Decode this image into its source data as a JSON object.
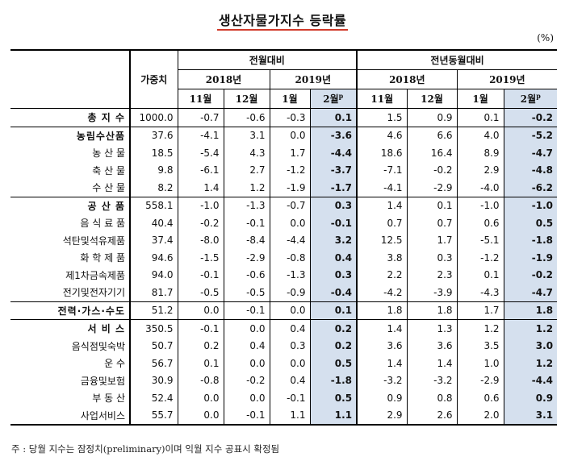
{
  "title": "생산자물가지수 등락률",
  "unit": "(%)",
  "header": {
    "weight": "가중치",
    "mom": "전월대비",
    "yoy": "전년동월대비",
    "y2018": "2018년",
    "y2019": "2019년",
    "m11": "11월",
    "m12": "12월",
    "m1": "1월",
    "m2": "2월",
    "p": "p"
  },
  "rows": [
    {
      "label": "총 지 수",
      "level": "top",
      "weight": "1000.0",
      "v": [
        "-0.7",
        "-0.6",
        "-0.3",
        "0.1",
        "1.5",
        "0.9",
        "0.1",
        "-0.2"
      ]
    },
    {
      "label": "농림수산품",
      "level": "top",
      "weight": "37.6",
      "v": [
        "-4.1",
        "3.1",
        "0.0",
        "-3.6",
        "4.6",
        "6.6",
        "4.0",
        "-5.2"
      ]
    },
    {
      "label": "농 산 물",
      "level": "sub",
      "weight": "18.5",
      "v": [
        "-5.4",
        "4.3",
        "1.7",
        "-4.4",
        "18.6",
        "16.4",
        "8.9",
        "-4.7"
      ]
    },
    {
      "label": "축 산 물",
      "level": "sub",
      "weight": "9.8",
      "v": [
        "-6.1",
        "2.7",
        "-1.2",
        "-3.7",
        "-7.1",
        "-0.2",
        "2.9",
        "-4.8"
      ]
    },
    {
      "label": "수 산 물",
      "level": "sub",
      "weight": "8.2",
      "v": [
        "1.4",
        "1.2",
        "-1.9",
        "-1.7",
        "-4.1",
        "-2.9",
        "-4.0",
        "-6.2"
      ]
    },
    {
      "label": "공 산 품",
      "level": "top",
      "weight": "558.1",
      "v": [
        "-1.0",
        "-1.3",
        "-0.7",
        "0.3",
        "1.4",
        "0.1",
        "-1.0",
        "-1.0"
      ]
    },
    {
      "label": "음 식 료 품",
      "level": "sub",
      "weight": "40.4",
      "v": [
        "-0.2",
        "-0.1",
        "0.0",
        "-0.1",
        "0.7",
        "0.7",
        "0.6",
        "0.5"
      ]
    },
    {
      "label": "석탄및석유제품",
      "level": "sub",
      "weight": "37.4",
      "v": [
        "-8.0",
        "-8.4",
        "-4.4",
        "3.2",
        "12.5",
        "1.7",
        "-5.1",
        "-1.8"
      ]
    },
    {
      "label": "화 학 제 품",
      "level": "sub",
      "weight": "94.6",
      "v": [
        "-1.5",
        "-2.9",
        "-0.8",
        "0.4",
        "3.8",
        "0.3",
        "-1.2",
        "-1.9"
      ]
    },
    {
      "label": "제1차금속제품",
      "level": "sub",
      "weight": "94.0",
      "v": [
        "-0.1",
        "-0.6",
        "-1.3",
        "0.3",
        "2.2",
        "2.3",
        "0.1",
        "-0.2"
      ]
    },
    {
      "label": "전기및전자기기",
      "level": "sub",
      "weight": "81.7",
      "v": [
        "-0.5",
        "-0.5",
        "-0.9",
        "-0.4",
        "-4.2",
        "-3.9",
        "-4.3",
        "-4.7"
      ]
    },
    {
      "label": "전력·가스·수도",
      "level": "top",
      "weight": "51.2",
      "v": [
        "0.0",
        "-0.1",
        "0.0",
        "0.1",
        "1.8",
        "1.8",
        "1.7",
        "1.8"
      ]
    },
    {
      "label": "서 비 스",
      "level": "top",
      "weight": "350.5",
      "v": [
        "-0.1",
        "0.0",
        "0.4",
        "0.2",
        "1.4",
        "1.3",
        "1.2",
        "1.2"
      ]
    },
    {
      "label": "음식점및숙박",
      "level": "sub",
      "weight": "50.7",
      "v": [
        "0.2",
        "0.4",
        "0.3",
        "0.2",
        "3.6",
        "3.6",
        "3.5",
        "3.0"
      ]
    },
    {
      "label": "운 수",
      "level": "sub",
      "weight": "56.7",
      "v": [
        "0.1",
        "0.0",
        "0.0",
        "0.5",
        "1.4",
        "1.4",
        "1.0",
        "1.2"
      ]
    },
    {
      "label": "금융및보험",
      "level": "sub",
      "weight": "30.9",
      "v": [
        "-0.8",
        "-0.2",
        "0.4",
        "-1.8",
        "-3.2",
        "-3.2",
        "-2.9",
        "-4.4"
      ]
    },
    {
      "label": "부 동 산",
      "level": "sub",
      "weight": "52.4",
      "v": [
        "0.0",
        "0.0",
        "-0.1",
        "0.5",
        "0.9",
        "0.8",
        "0.6",
        "0.9"
      ]
    },
    {
      "label": "사업서비스",
      "level": "sub",
      "weight": "55.7",
      "v": [
        "0.0",
        "-0.1",
        "1.1",
        "1.1",
        "2.9",
        "2.6",
        "2.0",
        "3.1"
      ]
    }
  ],
  "note": "주 : 당월 지수는 잠정치(preliminary)이며 익월 지수 공표시 확정됨"
}
